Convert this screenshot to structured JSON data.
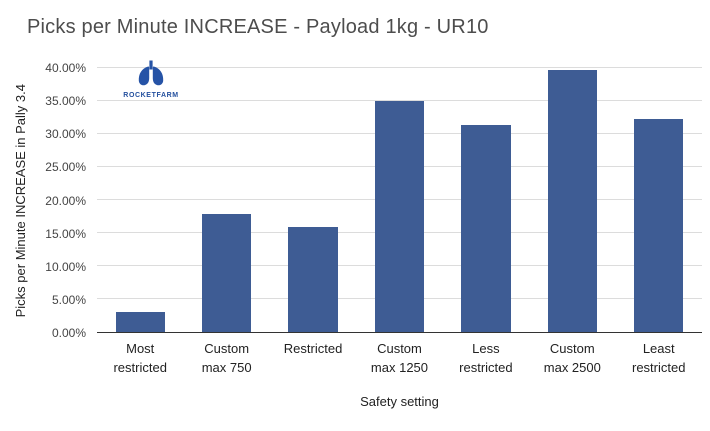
{
  "chart_data": {
    "type": "bar",
    "title": "Picks per Minute INCREASE - Payload 1kg - UR10",
    "categories": [
      "Most restricted",
      "Custom max 750",
      "Restricted",
      "Custom max 1250",
      "Less restricted",
      "Custom max 2500",
      "Least restricted"
    ],
    "category_lines": [
      [
        "Most",
        "restricted"
      ],
      [
        "Custom",
        "max 750"
      ],
      [
        "Restricted"
      ],
      [
        "Custom",
        "max 1250"
      ],
      [
        "Less",
        "restricted"
      ],
      [
        "Custom",
        "max 2500"
      ],
      [
        "Least",
        "restricted"
      ]
    ],
    "values": [
      3.1,
      17.9,
      15.9,
      35.0,
      31.4,
      39.7,
      32.3
    ],
    "unit": "%",
    "xlabel": "Safety setting",
    "ylabel": "Picks per Minute INCREASE in Pally 3.4",
    "ylim": [
      0,
      40
    ],
    "ytick_step": 5,
    "ytick_labels": [
      "0.00%",
      "5.00%",
      "10.00%",
      "15.00%",
      "20.00%",
      "25.00%",
      "30.00%",
      "35.00%",
      "40.00%"
    ],
    "grid": true,
    "legend": "none",
    "bar_color": "#3e5c94"
  },
  "logo": {
    "name": "Rocketfarm",
    "text": "ROCKETFARM",
    "color": "#2653a6"
  }
}
